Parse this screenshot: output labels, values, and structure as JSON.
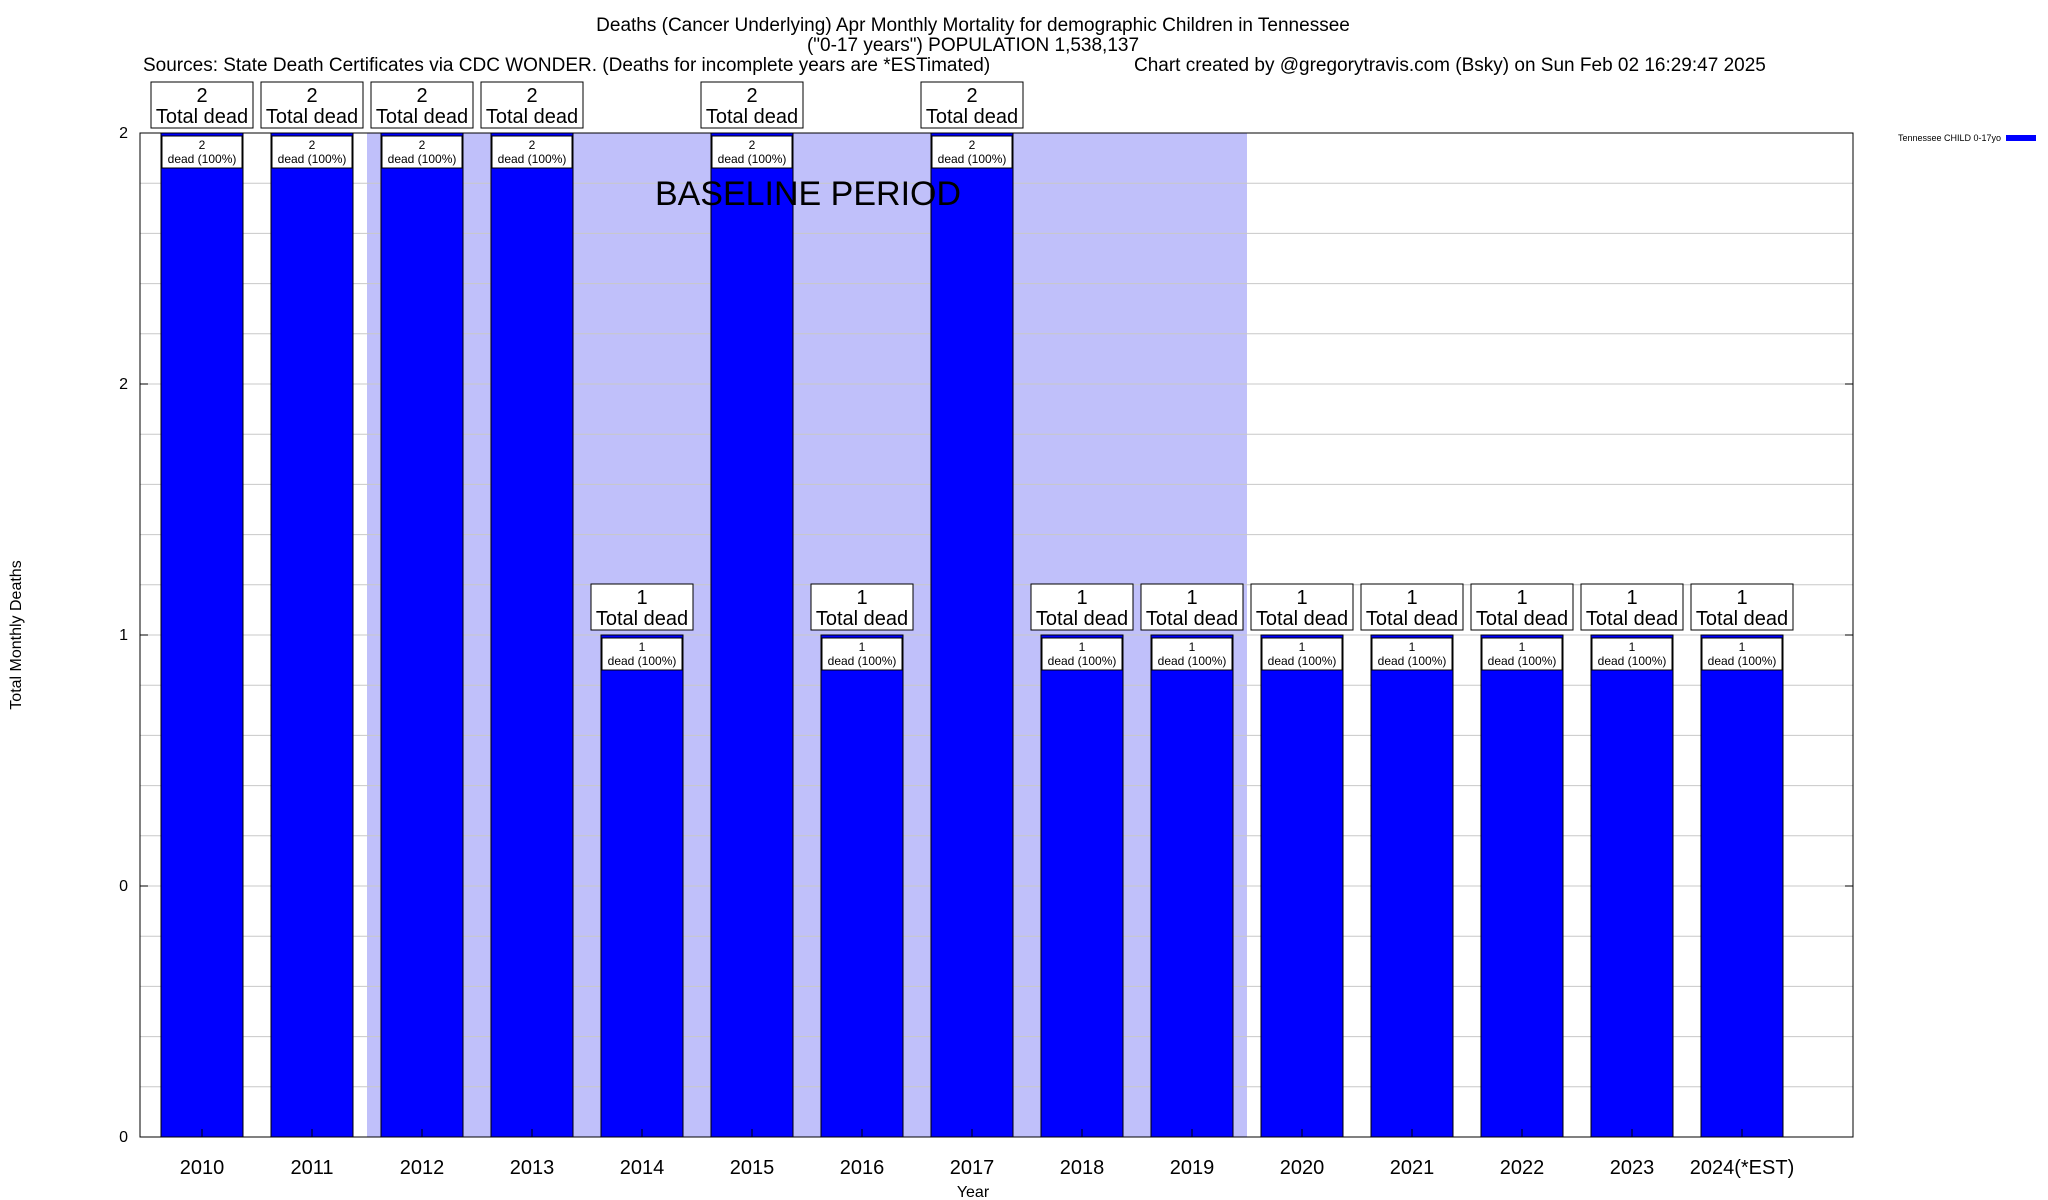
{
  "chart_data": {
    "type": "bar",
    "title_line1": "Deaths (Cancer Underlying) Apr Monthly Mortality for demographic Children in Tennessee",
    "title_line2": "(\"0-17 years\") POPULATION 1,538,137",
    "sources": "Sources: State Death Certificates via CDC WONDER. (Deaths for incomplete years are *ESTimated)",
    "credit": "Chart created by @gregorytravis.com (Bsky) on Sun Feb 02 16:29:47 2025",
    "xlabel": "Year",
    "ylabel": "Total Monthly Deaths",
    "categories": [
      "2010",
      "2011",
      "2012",
      "2013",
      "2014",
      "2015",
      "2016",
      "2017",
      "2018",
      "2019",
      "2020",
      "2021",
      "2022",
      "2023",
      "2024(*EST)"
    ],
    "series": [
      {
        "name": "Tennessee CHILD 0-17yo",
        "color": "#0000ff",
        "values": [
          2,
          2,
          2,
          2,
          1,
          2,
          1,
          2,
          1,
          1,
          1,
          1,
          1,
          1,
          1
        ]
      }
    ],
    "total_labels": [
      "2",
      "2",
      "2",
      "2",
      "1",
      "2",
      "1",
      "2",
      "1",
      "1",
      "1",
      "1",
      "1",
      "1",
      "1"
    ],
    "total_suffix": "Total dead",
    "bar_labels": [
      "2",
      "2",
      "2",
      "2",
      "1",
      "2",
      "1",
      "2",
      "1",
      "1",
      "1",
      "1",
      "1",
      "1",
      "1"
    ],
    "bar_label_suffix": "dead (100%)",
    "ylim": [
      0,
      2
    ],
    "y_ticks": [
      {
        "value": 0,
        "label": "0"
      },
      {
        "value": 0.5,
        "label": "0"
      },
      {
        "value": 1,
        "label": "1"
      },
      {
        "value": 1.5,
        "label": "2"
      },
      {
        "value": 2,
        "label": "2"
      }
    ],
    "baseline_period": {
      "label": "BASELINE PERIOD",
      "start": "2012",
      "end": "2019",
      "color": "#c0c0fa"
    },
    "grid": true,
    "legend_position": "top-right"
  }
}
